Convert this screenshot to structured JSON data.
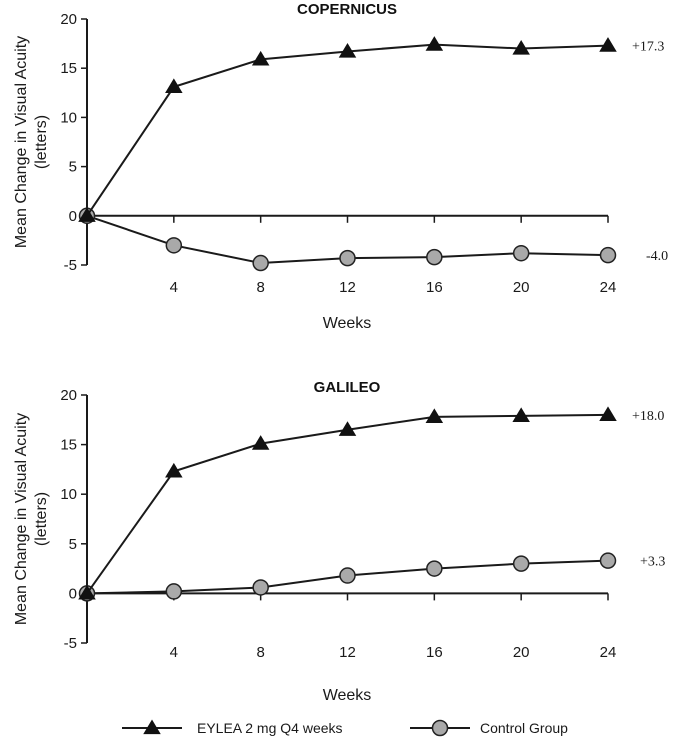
{
  "chart_data": [
    {
      "type": "line",
      "title": "COPERNICUS",
      "xlabel": "Weeks",
      "ylabel": [
        "Mean Change in Visual Acuity",
        "(letters)"
      ],
      "x": [
        0,
        4,
        8,
        12,
        16,
        20,
        24
      ],
      "xticks": [
        "4",
        "8",
        "12",
        "16",
        "20",
        "24"
      ],
      "xtick_values": [
        4,
        8,
        12,
        16,
        20,
        24
      ],
      "yticks": [
        "-5",
        "0",
        "5",
        "10",
        "15",
        "20"
      ],
      "ytick_values": [
        -5,
        0,
        5,
        10,
        15,
        20
      ],
      "xlim": [
        0,
        24
      ],
      "ylim": [
        -5,
        20
      ],
      "grid": false,
      "series": [
        {
          "name": "EYLEA 2 mg Q4 weeks",
          "marker": "triangle",
          "color": "#111111",
          "values": [
            0,
            13.1,
            15.9,
            16.7,
            17.4,
            17.0,
            17.3
          ],
          "end_label": "+17.3"
        },
        {
          "name": "Control Group",
          "marker": "circle",
          "color": "#6e6e6e",
          "values": [
            0,
            -3.0,
            -4.8,
            -4.3,
            -4.2,
            -3.8,
            -4.0
          ],
          "end_label": "-4.0"
        }
      ]
    },
    {
      "type": "line",
      "title": "GALILEO",
      "xlabel": "Weeks",
      "ylabel": [
        "Mean Change in Visual Acuity",
        "(letters)"
      ],
      "x": [
        0,
        4,
        8,
        12,
        16,
        20,
        24
      ],
      "xticks": [
        "4",
        "8",
        "12",
        "16",
        "20",
        "24"
      ],
      "xtick_values": [
        4,
        8,
        12,
        16,
        20,
        24
      ],
      "yticks": [
        "-5",
        "0",
        "5",
        "10",
        "15",
        "20"
      ],
      "ytick_values": [
        -5,
        0,
        5,
        10,
        15,
        20
      ],
      "xlim": [
        0,
        24
      ],
      "ylim": [
        -5,
        20
      ],
      "grid": false,
      "series": [
        {
          "name": "EYLEA 2 mg Q4 weeks",
          "marker": "triangle",
          "color": "#111111",
          "values": [
            0,
            12.3,
            15.1,
            16.5,
            17.8,
            17.9,
            18.0
          ],
          "end_label": "+18.0"
        },
        {
          "name": "Control Group",
          "marker": "circle",
          "color": "#6e6e6e",
          "values": [
            0,
            0.2,
            0.6,
            1.8,
            2.5,
            3.0,
            3.3
          ],
          "end_label": "+3.3"
        }
      ]
    }
  ],
  "legend": {
    "placement": "bottom",
    "items": [
      {
        "label": "EYLEA 2 mg Q4 weeks",
        "marker": "triangle"
      },
      {
        "label": "Control Group",
        "marker": "circle"
      }
    ]
  }
}
